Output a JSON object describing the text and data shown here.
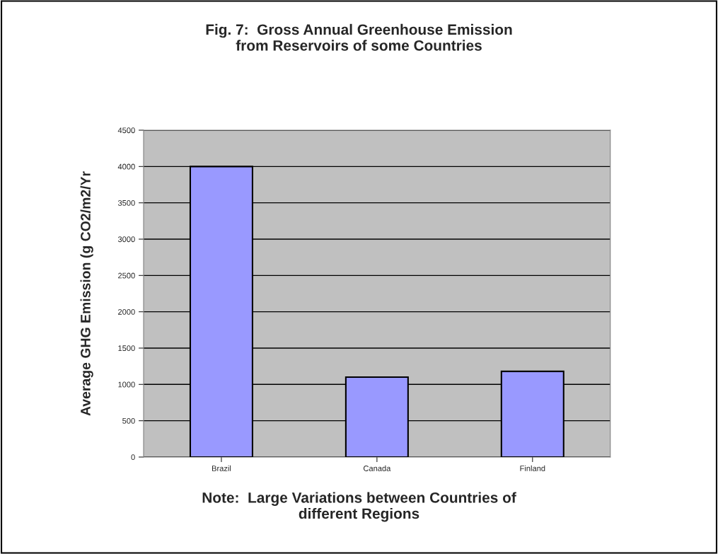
{
  "chart_data": {
    "type": "bar",
    "title": "Fig. 7:  Gross Annual Greenhouse Emission\nfrom Reservoirs of some Countries",
    "ylabel": "Average GHG Emission (g CO2/m2/Yr",
    "categories": [
      "Brazil",
      "Canada",
      "Finland"
    ],
    "values": [
      4000,
      1100,
      1180
    ],
    "color": "#9999ff",
    "ylim": [
      0,
      4500
    ],
    "yticks": [
      0,
      500,
      1000,
      1500,
      2000,
      2500,
      3000,
      3500,
      4000,
      4500
    ],
    "grid": "y",
    "annotations": [
      "Note:  Large Variations between Countries of\ndifferent Regions"
    ]
  }
}
